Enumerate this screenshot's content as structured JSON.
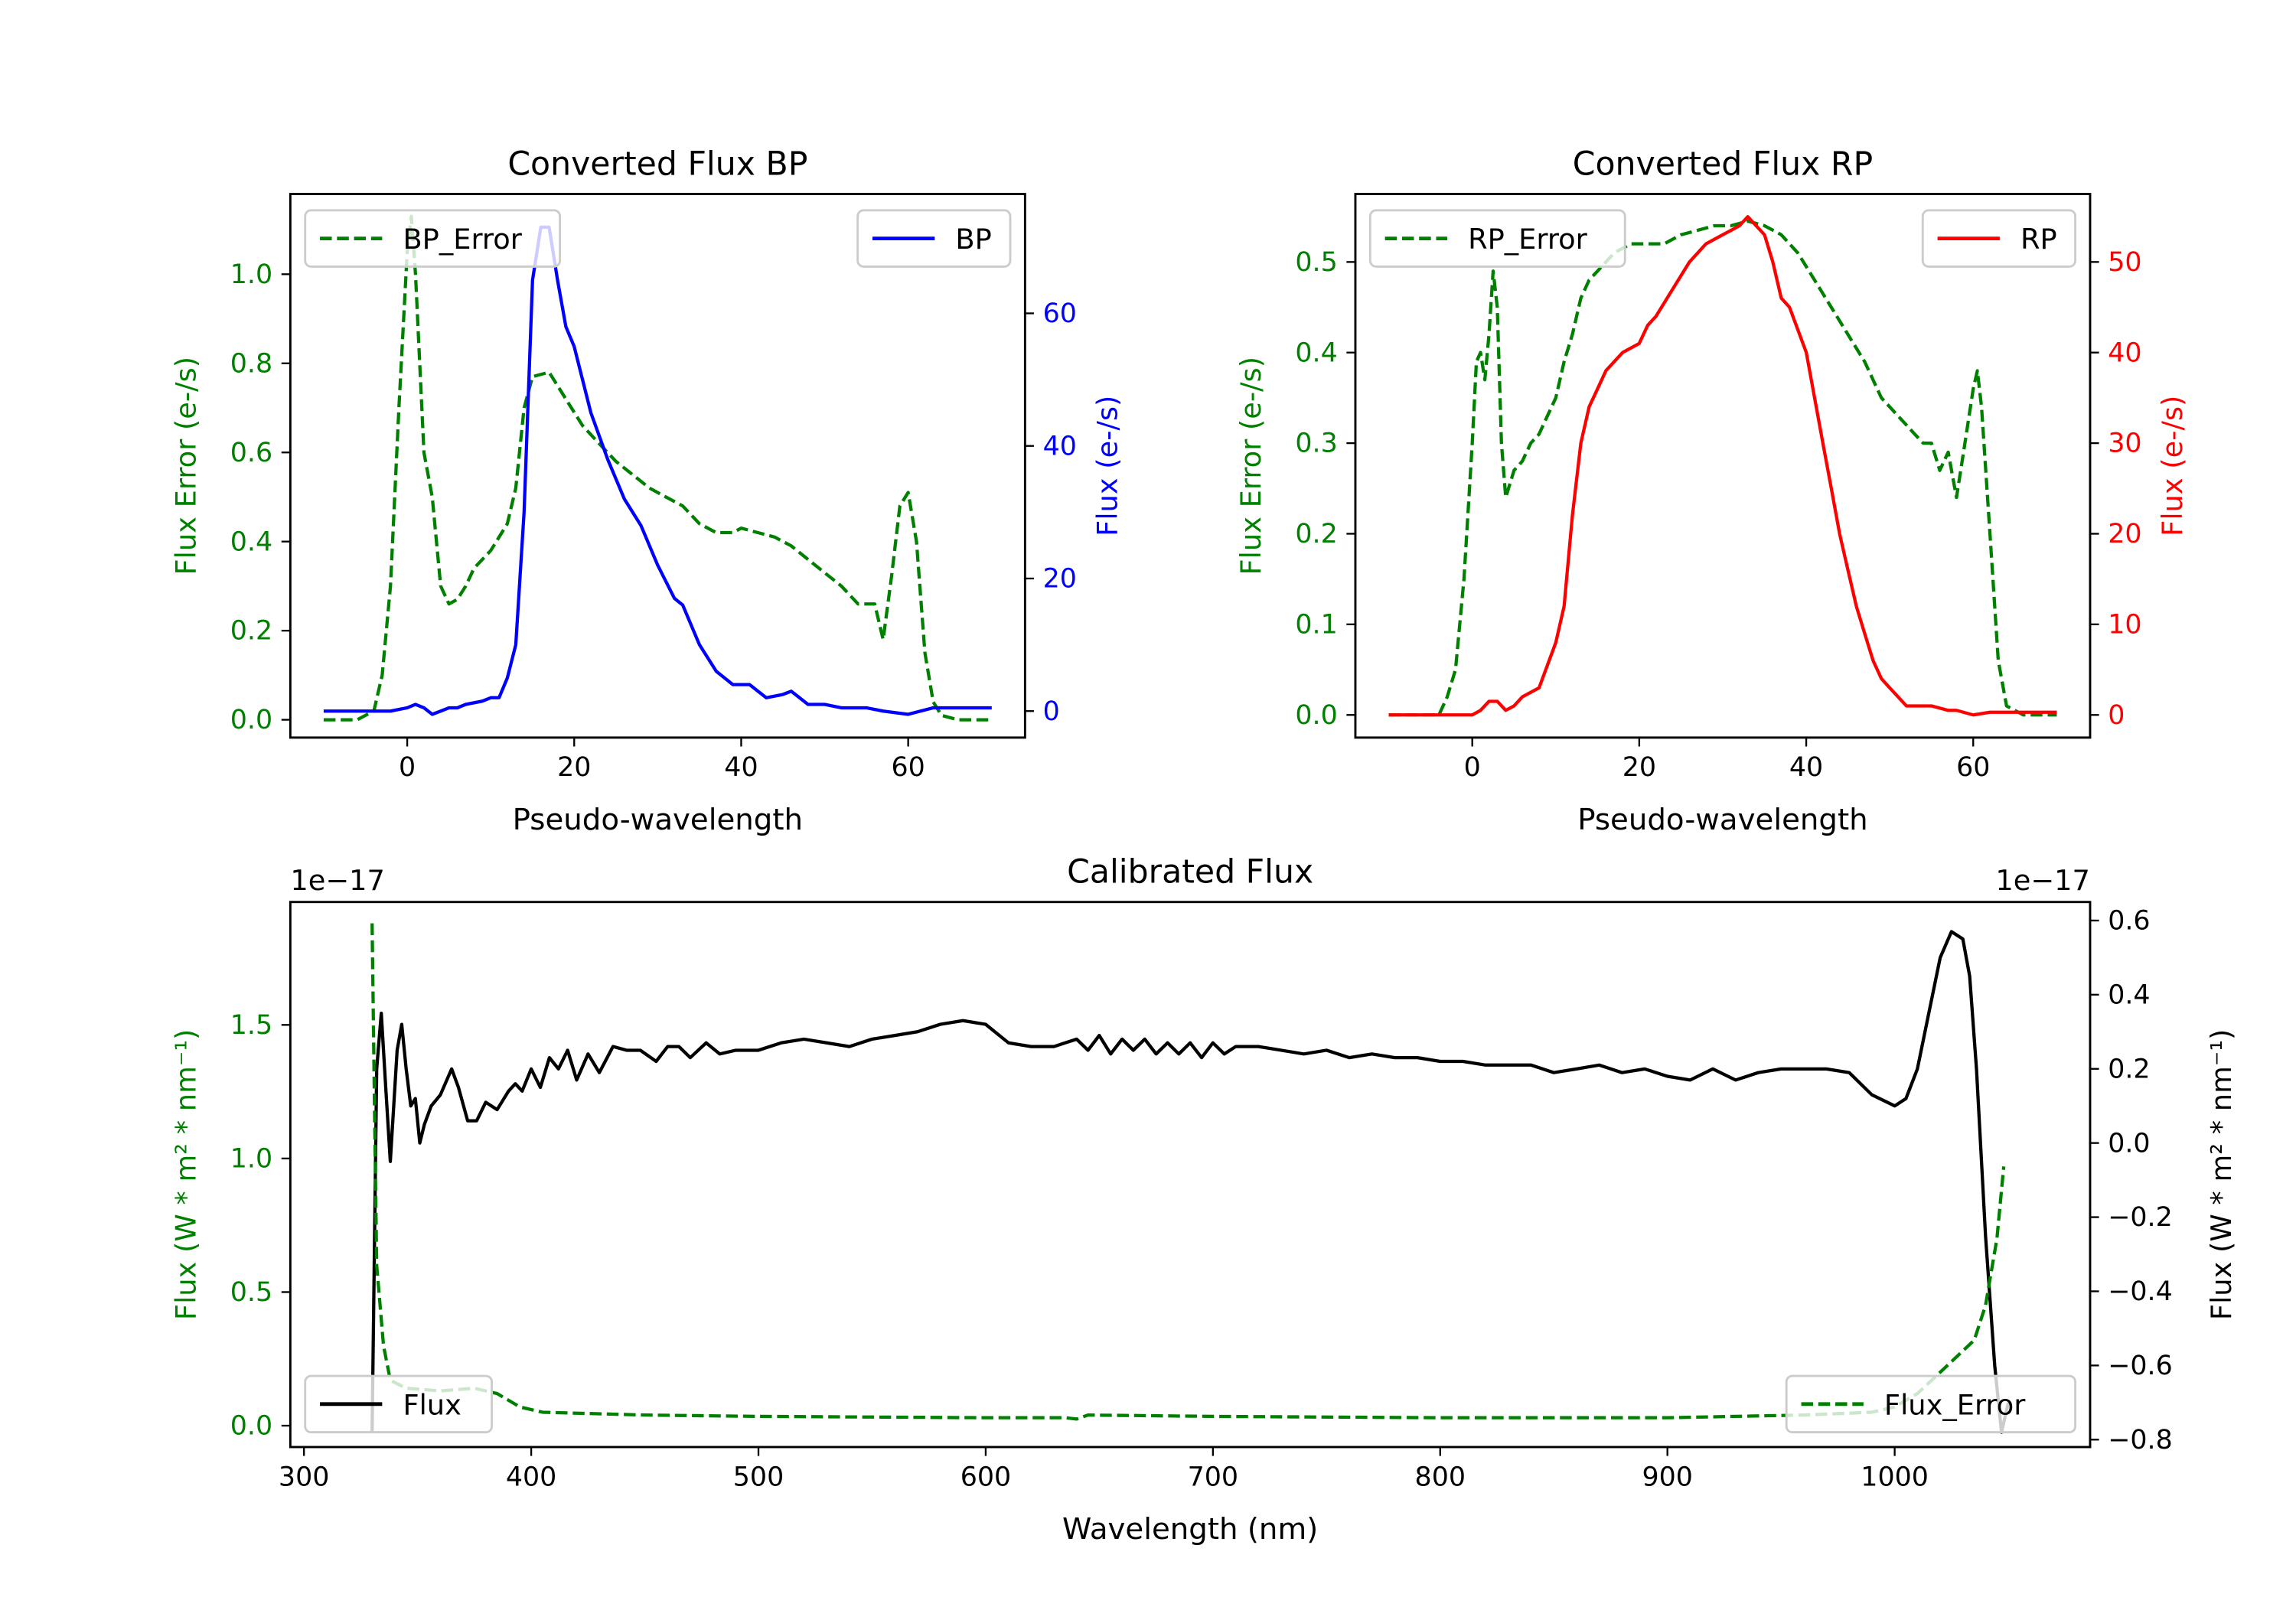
{
  "chart_data": [
    {
      "type": "line",
      "title": "Converted Flux BP",
      "xlabel": "Pseudo-wavelength",
      "ylabel_left": "Flux Error (e-/s)",
      "ylabel_right": "Flux (e-/s)",
      "xlim": [
        -14,
        74
      ],
      "ylim_left": [
        -0.04,
        1.18
      ],
      "ylim_right": [
        -4,
        78
      ],
      "xticks": [
        0,
        20,
        40,
        60
      ],
      "yticks_left": [
        0.0,
        0.2,
        0.4,
        0.6,
        0.8,
        1.0
      ],
      "yticks_right": [
        0,
        20,
        40,
        60
      ],
      "left_color": "#008000",
      "right_color": "#0000ff",
      "series": [
        {
          "name": "BP_Error",
          "axis": "left",
          "style": "dashed",
          "color": "#008000",
          "legend": "top-left",
          "x": [
            -10,
            -6,
            -4,
            -3,
            -2,
            -1,
            0,
            0.5,
            1,
            2,
            3,
            4,
            5,
            6,
            7,
            8,
            10,
            12,
            13,
            14,
            15,
            17,
            18,
            19,
            21,
            23,
            25,
            27,
            29,
            31,
            33,
            35,
            37,
            39,
            40,
            42,
            44,
            46,
            48,
            50,
            52,
            54,
            56,
            57,
            58,
            59,
            60,
            61,
            62,
            63,
            64,
            66,
            70
          ],
          "y": [
            0,
            0,
            0.02,
            0.1,
            0.3,
            0.7,
            1.05,
            1.13,
            1.0,
            0.6,
            0.5,
            0.3,
            0.26,
            0.27,
            0.3,
            0.34,
            0.38,
            0.44,
            0.52,
            0.7,
            0.77,
            0.78,
            0.75,
            0.72,
            0.66,
            0.62,
            0.58,
            0.55,
            0.52,
            0.5,
            0.48,
            0.44,
            0.42,
            0.42,
            0.43,
            0.42,
            0.41,
            0.39,
            0.36,
            0.33,
            0.3,
            0.26,
            0.26,
            0.18,
            0.32,
            0.48,
            0.51,
            0.4,
            0.15,
            0.04,
            0.01,
            0,
            0
          ]
        },
        {
          "name": "BP",
          "axis": "right",
          "style": "solid",
          "color": "#0000ff",
          "legend": "top-right",
          "x": [
            -10,
            -2,
            0,
            1,
            2,
            3,
            4,
            5,
            6,
            7,
            9,
            10,
            11,
            12,
            13,
            14,
            15,
            16,
            17,
            18,
            19,
            20,
            22,
            24,
            26,
            28,
            30,
            32,
            33,
            35,
            37,
            39,
            41,
            43,
            45,
            46,
            48,
            50,
            52,
            55,
            57,
            60,
            63,
            70
          ],
          "y": [
            0,
            0,
            0.5,
            1,
            0.5,
            -0.5,
            0,
            0.5,
            0.5,
            1,
            1.5,
            2,
            2,
            5,
            10,
            30,
            65,
            73,
            73,
            65,
            58,
            55,
            45,
            38,
            32,
            28,
            22,
            17,
            16,
            10,
            6,
            4,
            4,
            2,
            2.5,
            3,
            1,
            1,
            0.5,
            0.5,
            0,
            -0.5,
            0.5,
            0.5
          ]
        }
      ]
    },
    {
      "type": "line",
      "title": "Converted Flux RP",
      "xlabel": "Pseudo-wavelength",
      "ylabel_left": "Flux Error (e-/s)",
      "ylabel_right": "Flux (e-/s)",
      "xlim": [
        -14,
        74
      ],
      "ylim_left": [
        -0.025,
        0.575
      ],
      "ylim_right": [
        -2.5,
        57.5
      ],
      "xticks": [
        0,
        20,
        40,
        60
      ],
      "yticks_left": [
        0.0,
        0.1,
        0.2,
        0.3,
        0.4,
        0.5
      ],
      "yticks_right": [
        0,
        10,
        20,
        30,
        40,
        50
      ],
      "left_color": "#008000",
      "right_color": "#ff0000",
      "series": [
        {
          "name": "RP_Error",
          "axis": "left",
          "style": "dashed",
          "color": "#008000",
          "legend": "top-left",
          "x": [
            -10,
            -4,
            -3,
            -2,
            -1,
            0,
            0.5,
            1,
            1.5,
            2,
            2.5,
            3,
            3.5,
            4,
            5,
            6,
            7,
            8,
            9,
            10,
            11,
            12,
            13,
            14,
            15,
            17,
            19,
            21,
            23,
            25,
            27,
            29,
            31,
            33,
            35,
            37,
            39,
            41,
            43,
            45,
            47,
            49,
            51,
            53,
            54,
            55,
            56,
            57,
            58,
            59,
            60,
            60.5,
            61,
            62,
            63,
            64,
            66,
            70
          ],
          "y": [
            0,
            0,
            0.02,
            0.05,
            0.15,
            0.3,
            0.39,
            0.4,
            0.37,
            0.42,
            0.49,
            0.45,
            0.3,
            0.24,
            0.27,
            0.28,
            0.3,
            0.31,
            0.33,
            0.35,
            0.39,
            0.42,
            0.46,
            0.48,
            0.49,
            0.51,
            0.52,
            0.52,
            0.52,
            0.53,
            0.535,
            0.54,
            0.54,
            0.545,
            0.54,
            0.53,
            0.51,
            0.48,
            0.45,
            0.42,
            0.39,
            0.35,
            0.33,
            0.31,
            0.3,
            0.3,
            0.27,
            0.29,
            0.24,
            0.3,
            0.36,
            0.38,
            0.34,
            0.2,
            0.06,
            0.01,
            0,
            0
          ]
        },
        {
          "name": "RP",
          "axis": "right",
          "style": "solid",
          "color": "#ff0000",
          "legend": "top-right",
          "x": [
            -10,
            -2,
            0,
            1,
            2,
            3,
            4,
            5,
            6,
            8,
            10,
            11,
            12,
            13,
            14,
            15,
            16,
            17,
            18,
            20,
            21,
            22,
            24,
            26,
            28,
            30,
            31,
            32,
            33,
            34,
            35,
            36,
            37,
            38,
            40,
            41,
            42,
            43,
            44,
            45,
            46,
            47,
            48,
            49,
            50,
            52,
            55,
            57,
            58,
            60,
            62,
            70
          ],
          "y": [
            0,
            0,
            0,
            0.5,
            1.5,
            1.5,
            0.5,
            1,
            2,
            3,
            8,
            12,
            22,
            30,
            34,
            36,
            38,
            39,
            40,
            41,
            43,
            44,
            47,
            50,
            52,
            53,
            53.5,
            54,
            55,
            54,
            53,
            50,
            46,
            45,
            40,
            35,
            30,
            25,
            20,
            16,
            12,
            9,
            6,
            4,
            3,
            1,
            1,
            0.5,
            0.5,
            0,
            0.3,
            0.3
          ]
        }
      ]
    },
    {
      "type": "line",
      "title": "Calibrated Flux",
      "xlabel": "Wavelength (nm)",
      "ylabel_left": "Flux (W * m² * nm⁻¹)",
      "ylabel_right": "Flux (W * m² * nm⁻¹)",
      "offset_left": "1e−17",
      "offset_right": "1e−17",
      "xlim": [
        294,
        1086
      ],
      "ylim_left": [
        -0.08,
        1.96
      ],
      "ylim_right": [
        -0.82,
        0.65
      ],
      "xticks": [
        300,
        400,
        500,
        600,
        700,
        800,
        900,
        1000
      ],
      "yticks_left": [
        0.0,
        0.5,
        1.0,
        1.5
      ],
      "yticks_right": [
        -0.8,
        -0.6,
        -0.4,
        -0.2,
        0.0,
        0.2,
        0.4,
        0.6
      ],
      "left_color": "#008000",
      "right_color": "#000000",
      "series": [
        {
          "name": "Flux",
          "axis": "right",
          "style": "solid",
          "color": "#000000",
          "legend": "bottom-left",
          "x": [
            330,
            332,
            334,
            336,
            338,
            341,
            343,
            345,
            347,
            349,
            351,
            353,
            356,
            360,
            365,
            368,
            372,
            376,
            380,
            385,
            390,
            393,
            396,
            400,
            404,
            408,
            412,
            416,
            420,
            425,
            430,
            436,
            442,
            448,
            455,
            460,
            465,
            470,
            477,
            483,
            490,
            500,
            510,
            520,
            530,
            540,
            550,
            560,
            570,
            580,
            590,
            600,
            610,
            620,
            630,
            640,
            645,
            650,
            655,
            660,
            665,
            670,
            675,
            680,
            685,
            690,
            695,
            700,
            705,
            710,
            720,
            730,
            740,
            750,
            760,
            770,
            780,
            790,
            800,
            810,
            820,
            830,
            840,
            850,
            860,
            870,
            880,
            890,
            900,
            910,
            920,
            930,
            940,
            950,
            960,
            970,
            980,
            990,
            1000,
            1005,
            1010,
            1015,
            1020,
            1025,
            1030,
            1033,
            1036,
            1040,
            1044,
            1047,
            1050
          ],
          "y": [
            -0.78,
            0.2,
            0.35,
            0.15,
            -0.05,
            0.25,
            0.32,
            0.2,
            0.1,
            0.12,
            0.0,
            0.05,
            0.1,
            0.13,
            0.2,
            0.15,
            0.06,
            0.06,
            0.11,
            0.09,
            0.14,
            0.16,
            0.14,
            0.2,
            0.15,
            0.23,
            0.2,
            0.25,
            0.17,
            0.24,
            0.19,
            0.26,
            0.25,
            0.25,
            0.22,
            0.26,
            0.26,
            0.23,
            0.27,
            0.24,
            0.25,
            0.25,
            0.27,
            0.28,
            0.27,
            0.26,
            0.28,
            0.29,
            0.3,
            0.32,
            0.33,
            0.32,
            0.27,
            0.26,
            0.26,
            0.28,
            0.25,
            0.29,
            0.24,
            0.28,
            0.25,
            0.28,
            0.24,
            0.27,
            0.24,
            0.27,
            0.23,
            0.27,
            0.24,
            0.26,
            0.26,
            0.25,
            0.24,
            0.25,
            0.23,
            0.24,
            0.23,
            0.23,
            0.22,
            0.22,
            0.21,
            0.21,
            0.21,
            0.19,
            0.2,
            0.21,
            0.19,
            0.2,
            0.18,
            0.17,
            0.2,
            0.17,
            0.19,
            0.2,
            0.2,
            0.2,
            0.19,
            0.13,
            0.1,
            0.12,
            0.2,
            0.35,
            0.5,
            0.57,
            0.55,
            0.45,
            0.2,
            -0.25,
            -0.6,
            -0.78,
            -0.7
          ]
        },
        {
          "name": "Flux_Error",
          "axis": "left",
          "style": "dashed",
          "color": "#008000",
          "legend": "bottom-right",
          "x": [
            330,
            331,
            332,
            335,
            338,
            345,
            360,
            375,
            385,
            395,
            405,
            450,
            500,
            600,
            635,
            640,
            645,
            700,
            800,
            900,
            960,
            990,
            1000,
            1010,
            1020,
            1030,
            1035,
            1040,
            1045,
            1048
          ],
          "y": [
            1.88,
            1.2,
            0.6,
            0.3,
            0.17,
            0.14,
            0.13,
            0.14,
            0.12,
            0.07,
            0.05,
            0.04,
            0.035,
            0.03,
            0.03,
            0.025,
            0.04,
            0.035,
            0.03,
            0.03,
            0.04,
            0.05,
            0.07,
            0.12,
            0.2,
            0.28,
            0.32,
            0.45,
            0.7,
            0.97
          ]
        }
      ]
    }
  ]
}
